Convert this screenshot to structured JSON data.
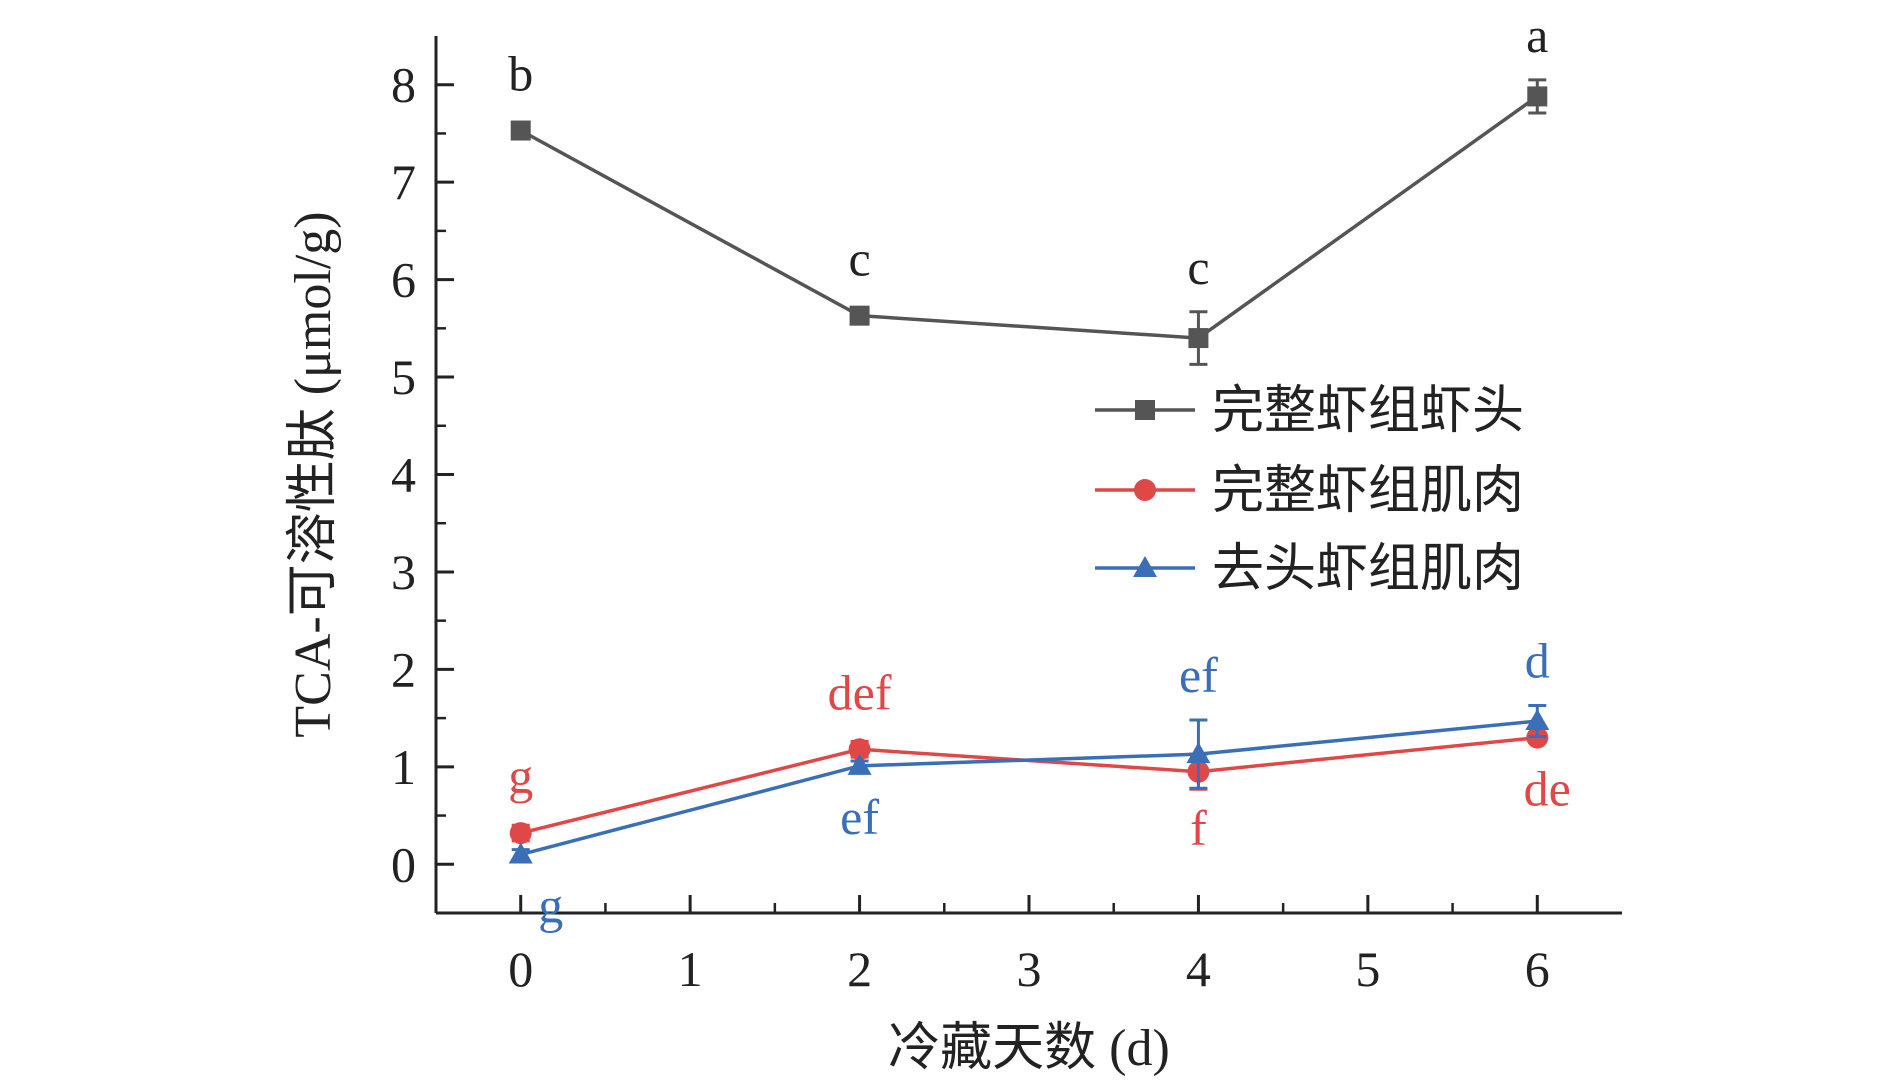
{
  "chart_data": {
    "type": "line",
    "title": "",
    "xlabel": "冷藏天数 (d)",
    "ylabel": "TCA-可溶性肽 (μmol/g)",
    "xlim": [
      -0.5,
      6.5
    ],
    "ylim": [
      -0.5,
      8.5
    ],
    "xticks": [
      0,
      1,
      2,
      3,
      4,
      5,
      6
    ],
    "yticks": [
      0,
      1,
      2,
      3,
      4,
      5,
      6,
      7,
      8
    ],
    "grid": false,
    "legend_position": "center-right",
    "x": [
      0,
      2,
      4,
      6
    ],
    "series": [
      {
        "name": "完整虾组虾头",
        "color": "#555555",
        "marker": "square",
        "values": [
          7.53,
          5.63,
          5.4,
          7.88
        ],
        "errors": [
          0.04,
          0.05,
          0.27,
          0.17
        ],
        "sig_labels": [
          "b",
          "c",
          "c",
          "a"
        ],
        "sig_positions": [
          "above",
          "above",
          "above",
          "above"
        ]
      },
      {
        "name": "完整虾组肌肉",
        "color": "#e04848",
        "marker": "circle",
        "values": [
          0.32,
          1.18,
          0.95,
          1.3
        ],
        "errors": [
          0.08,
          0.08,
          0.18,
          0.05
        ],
        "sig_labels": [
          "g",
          "def",
          "f",
          "de"
        ],
        "sig_positions": [
          "above",
          "above",
          "below",
          "below"
        ]
      },
      {
        "name": "去头虾组肌肉",
        "color": "#3a6fb8",
        "marker": "triangle",
        "values": [
          0.1,
          1.01,
          1.13,
          1.47
        ],
        "errors": [
          0.05,
          0.05,
          0.35,
          0.16
        ],
        "sig_labels": [
          "g",
          "ef",
          "ef",
          "d"
        ],
        "sig_positions": [
          "below",
          "below",
          "above",
          "above"
        ]
      }
    ]
  }
}
